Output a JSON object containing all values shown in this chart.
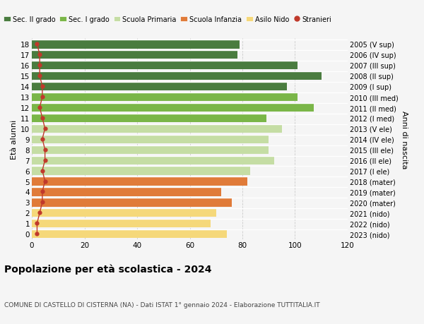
{
  "ages": [
    18,
    17,
    16,
    15,
    14,
    13,
    12,
    11,
    10,
    9,
    8,
    7,
    6,
    5,
    4,
    3,
    2,
    1,
    0
  ],
  "years": [
    "2005 (V sup)",
    "2006 (IV sup)",
    "2007 (III sup)",
    "2008 (II sup)",
    "2009 (I sup)",
    "2010 (III med)",
    "2011 (II med)",
    "2012 (I med)",
    "2013 (V ele)",
    "2014 (IV ele)",
    "2015 (III ele)",
    "2016 (II ele)",
    "2017 (I ele)",
    "2018 (mater)",
    "2019 (mater)",
    "2020 (mater)",
    "2021 (nido)",
    "2022 (nido)",
    "2023 (nido)"
  ],
  "values": [
    79,
    78,
    101,
    110,
    97,
    101,
    107,
    89,
    95,
    90,
    90,
    92,
    83,
    82,
    72,
    76,
    70,
    68,
    74
  ],
  "stranieri": [
    2,
    3,
    3,
    3,
    4,
    4,
    3,
    4,
    5,
    4,
    5,
    5,
    4,
    5,
    4,
    4,
    3,
    2,
    2
  ],
  "bar_colors": [
    "#4a7c3f",
    "#4a7c3f",
    "#4a7c3f",
    "#4a7c3f",
    "#4a7c3f",
    "#7ab648",
    "#7ab648",
    "#7ab648",
    "#c5dda4",
    "#c5dda4",
    "#c5dda4",
    "#c5dda4",
    "#c5dda4",
    "#e07b39",
    "#e07b39",
    "#e07b39",
    "#f5d87a",
    "#f5d87a",
    "#f5d87a"
  ],
  "legend_labels": [
    "Sec. II grado",
    "Sec. I grado",
    "Scuola Primaria",
    "Scuola Infanzia",
    "Asilo Nido",
    "Stranieri"
  ],
  "legend_colors": [
    "#4a7c3f",
    "#7ab648",
    "#c5dda4",
    "#e07b39",
    "#f5d87a",
    "#c0392b"
  ],
  "stranieri_color": "#c0392b",
  "title": "Popolazione per età scolastica - 2024",
  "subtitle": "COMUNE DI CASTELLO DI CISTERNA (NA) - Dati ISTAT 1° gennaio 2024 - Elaborazione TUTTITALIA.IT",
  "ylabel": "Età alunni",
  "right_ylabel": "Anni di nascita",
  "xlim": [
    0,
    120
  ],
  "xticks": [
    0,
    20,
    40,
    60,
    80,
    100,
    120
  ],
  "background_color": "#f5f5f5",
  "grid_color": "#cccccc"
}
